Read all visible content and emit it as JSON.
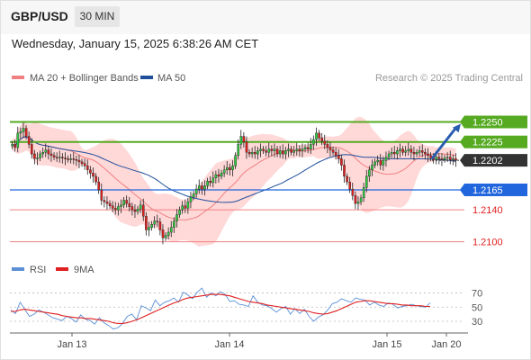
{
  "header": {
    "pair": "GBP/USD",
    "timeframe": "30 MIN",
    "datetime": "Wednesday, January 15, 2025 6:38:26 AM CET"
  },
  "legend": {
    "ma20_label": "MA 20 + Bollinger Bands",
    "ma50_label": "MA 50",
    "credit": "Research © 2025 Trading Central",
    "rsi_label": "RSI",
    "rsi_ma_label": "9MA"
  },
  "colors": {
    "up_candle": "#2ecc40",
    "down_candle": "#e02020",
    "ma20": "#f08080",
    "bollinger_fill": "#ffc8c8",
    "ma50": "#1f4e9b",
    "resistance": "#55aa22",
    "current": "#333333",
    "pivot": "#2266dd",
    "support": "#f08080",
    "rsi": "#5b8fd6",
    "rsi_ma": "#e02020",
    "arrow": "#2a5db0"
  },
  "chart_data": [
    {
      "type": "candlestick",
      "title": "GBP/USD",
      "x_ticks": [
        "Jan 13",
        "Jan 14",
        "Jan 15",
        "Jan 20"
      ],
      "ylim": [
        1.2085,
        1.229
      ],
      "levels": [
        {
          "value": "1.2250",
          "kind": "resistance"
        },
        {
          "value": "1.2225",
          "kind": "resistance"
        },
        {
          "value": "1.2202",
          "kind": "current"
        },
        {
          "value": "1.2165",
          "kind": "pivot"
        },
        {
          "value": "1.2140",
          "kind": "support"
        },
        {
          "value": "1.2100",
          "kind": "support"
        }
      ],
      "forecast": {
        "from": 1.2202,
        "to": 1.225,
        "direction": "up"
      },
      "series": [
        {
          "name": "MA 20 + Bollinger Bands",
          "type": "band"
        },
        {
          "name": "MA 50",
          "type": "line"
        }
      ],
      "close": [
        1.2222,
        1.2218,
        1.2236,
        1.2238,
        1.2242,
        1.2232,
        1.2222,
        1.221,
        1.2204,
        1.2205,
        1.221,
        1.2212,
        1.2215,
        1.221,
        1.2208,
        1.2206,
        1.2205,
        1.2206,
        1.2205,
        1.2204,
        1.2203,
        1.2204,
        1.2203,
        1.2202,
        1.22,
        1.2198,
        1.2195,
        1.219,
        1.2186,
        1.2182,
        1.2175,
        1.2165,
        1.2152,
        1.215,
        1.2148,
        1.2145,
        1.2142,
        1.214,
        1.2144,
        1.2146,
        1.2152,
        1.2148,
        1.2144,
        1.214,
        1.2138,
        1.2141,
        1.2146,
        1.2132,
        1.2115,
        1.2118,
        1.2122,
        1.2126,
        1.2125,
        1.2115,
        1.2105,
        1.2108,
        1.2112,
        1.2118,
        1.2126,
        1.2134,
        1.214,
        1.2145,
        1.2142,
        1.215,
        1.2156,
        1.216,
        1.2166,
        1.217,
        1.2166,
        1.217,
        1.2176,
        1.2174,
        1.218,
        1.2184,
        1.2182,
        1.2186,
        1.219,
        1.2193,
        1.219,
        1.2195,
        1.2208,
        1.2222,
        1.2232,
        1.2225,
        1.2212,
        1.221,
        1.2212,
        1.221,
        1.2214,
        1.2216,
        1.2214,
        1.2212,
        1.2216,
        1.2214,
        1.2216,
        1.221,
        1.2214,
        1.221,
        1.2214,
        1.2216,
        1.2212,
        1.2214,
        1.2216,
        1.2214,
        1.2216,
        1.2218,
        1.2216,
        1.2222,
        1.2228,
        1.2236,
        1.223,
        1.2226,
        1.2222,
        1.2218,
        1.2215,
        1.2212,
        1.2208,
        1.2204,
        1.2196,
        1.2182,
        1.2175,
        1.2166,
        1.2158,
        1.2148,
        1.215,
        1.2155,
        1.2168,
        1.2182,
        1.219,
        1.2196,
        1.22,
        1.2202,
        1.2196,
        1.2202,
        1.2206,
        1.221,
        1.2212,
        1.221,
        1.2214,
        1.2216,
        1.2212,
        1.2214,
        1.2216,
        1.2212,
        1.221,
        1.2212,
        1.2214,
        1.2212,
        1.221,
        1.2208,
        1.2205,
        1.2203,
        1.2206,
        1.2204,
        1.2203,
        1.2205,
        1.2206,
        1.2203,
        1.2204,
        1.2202
      ]
    },
    {
      "type": "line",
      "title": "RSI",
      "x_ticks": [
        "Jan 13",
        "Jan 14",
        "Jan 15",
        "Jan 20"
      ],
      "y_ticks": [
        "70",
        "50",
        "30"
      ],
      "ylim": [
        16,
        86
      ],
      "series": [
        {
          "name": "RSI",
          "values": [
            46,
            41,
            57,
            47,
            37,
            40,
            46,
            43,
            39,
            35,
            33,
            31,
            37,
            34,
            29,
            39,
            33,
            31,
            26,
            35,
            28,
            24,
            19,
            21,
            27,
            37,
            40,
            32,
            52,
            49,
            45,
            60,
            52,
            57,
            59,
            63,
            57,
            71,
            67,
            62,
            71,
            77,
            64,
            70,
            66,
            72,
            68,
            58,
            59,
            54,
            53,
            51,
            66,
            57,
            53,
            52,
            48,
            43,
            48,
            51,
            40,
            48,
            41,
            47,
            37,
            30,
            36,
            39,
            46,
            55,
            57,
            62,
            59,
            57,
            63,
            61,
            60,
            53,
            57,
            53,
            51,
            56,
            54,
            49,
            51,
            52,
            54,
            52,
            51,
            50,
            56
          ]
        },
        {
          "name": "9MA",
          "values": [
            44,
            44,
            46,
            47,
            46,
            45,
            44,
            43,
            42,
            41,
            40,
            38,
            37,
            36,
            35,
            35,
            34,
            34,
            33,
            32,
            31,
            30,
            28,
            27,
            27,
            28,
            30,
            32,
            35,
            38,
            41,
            44,
            47,
            50,
            53,
            56,
            58,
            61,
            63,
            64,
            65,
            66,
            67,
            68,
            68,
            68,
            67,
            66,
            64,
            62,
            60,
            58,
            57,
            56,
            55,
            53,
            52,
            51,
            50,
            49,
            48,
            47,
            46,
            45,
            44,
            42,
            41,
            40,
            41,
            43,
            45,
            48,
            51,
            54,
            57,
            58,
            59,
            59,
            58,
            57,
            56,
            55,
            55,
            54,
            53,
            53,
            52,
            52,
            52,
            51,
            51
          ]
        }
      ]
    }
  ]
}
